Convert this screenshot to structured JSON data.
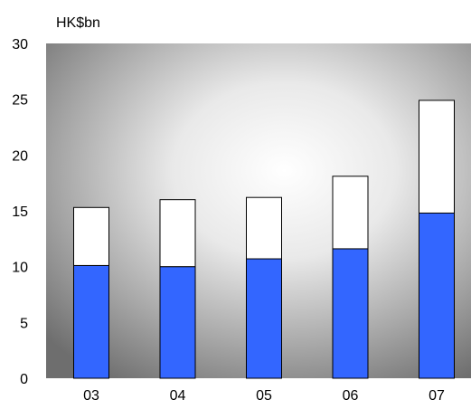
{
  "chart_data": {
    "type": "bar",
    "stacked": true,
    "unit": "HK$bn",
    "categories": [
      "03",
      "04",
      "05",
      "06",
      "07"
    ],
    "series": [
      {
        "values": [
          10.1,
          10.0,
          10.7,
          11.6,
          14.8
        ],
        "color": "#3366ff"
      },
      {
        "values": [
          5.2,
          6.0,
          5.5,
          6.5,
          10.1
        ],
        "color": "#ffffff"
      }
    ],
    "y_ticks": [
      "0",
      "5",
      "10",
      "15",
      "20",
      "25",
      "30"
    ],
    "ylim": [
      0,
      30
    ],
    "grid": false,
    "legend": "none",
    "background": "radial gradient, white center to dark gray edges"
  }
}
